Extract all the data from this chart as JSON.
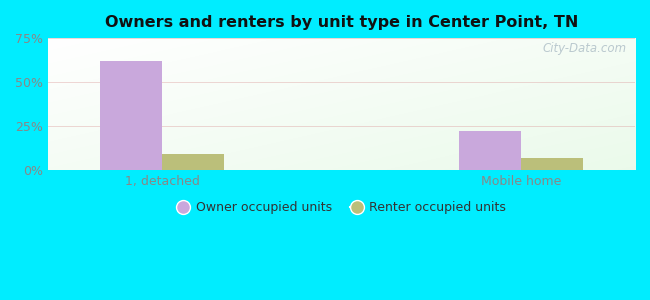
{
  "title": "Owners and renters by unit type in Center Point, TN",
  "categories": [
    "1, detached",
    "Mobile home"
  ],
  "owner_values": [
    62,
    22
  ],
  "renter_values": [
    9,
    7
  ],
  "owner_color": "#c9a8dc",
  "renter_color": "#bbbf7a",
  "ylim": [
    0,
    75
  ],
  "yticks": [
    0,
    25,
    50,
    75
  ],
  "ytick_labels": [
    "0%",
    "25%",
    "50%",
    "75%"
  ],
  "background_cyan": "#00EDFF",
  "bg_topleft_color": "#e8f5ee",
  "bg_topright_color": "#f8fff8",
  "bg_bottomleft_color": "#e0f2e8",
  "bg_bottomright_color": "#f0faf0",
  "grid_color": "#dda0a0",
  "watermark": "City-Data.com",
  "legend_labels": [
    "Owner occupied units",
    "Renter occupied units"
  ],
  "bar_width": 0.38,
  "group_positions": [
    1.0,
    3.2
  ]
}
